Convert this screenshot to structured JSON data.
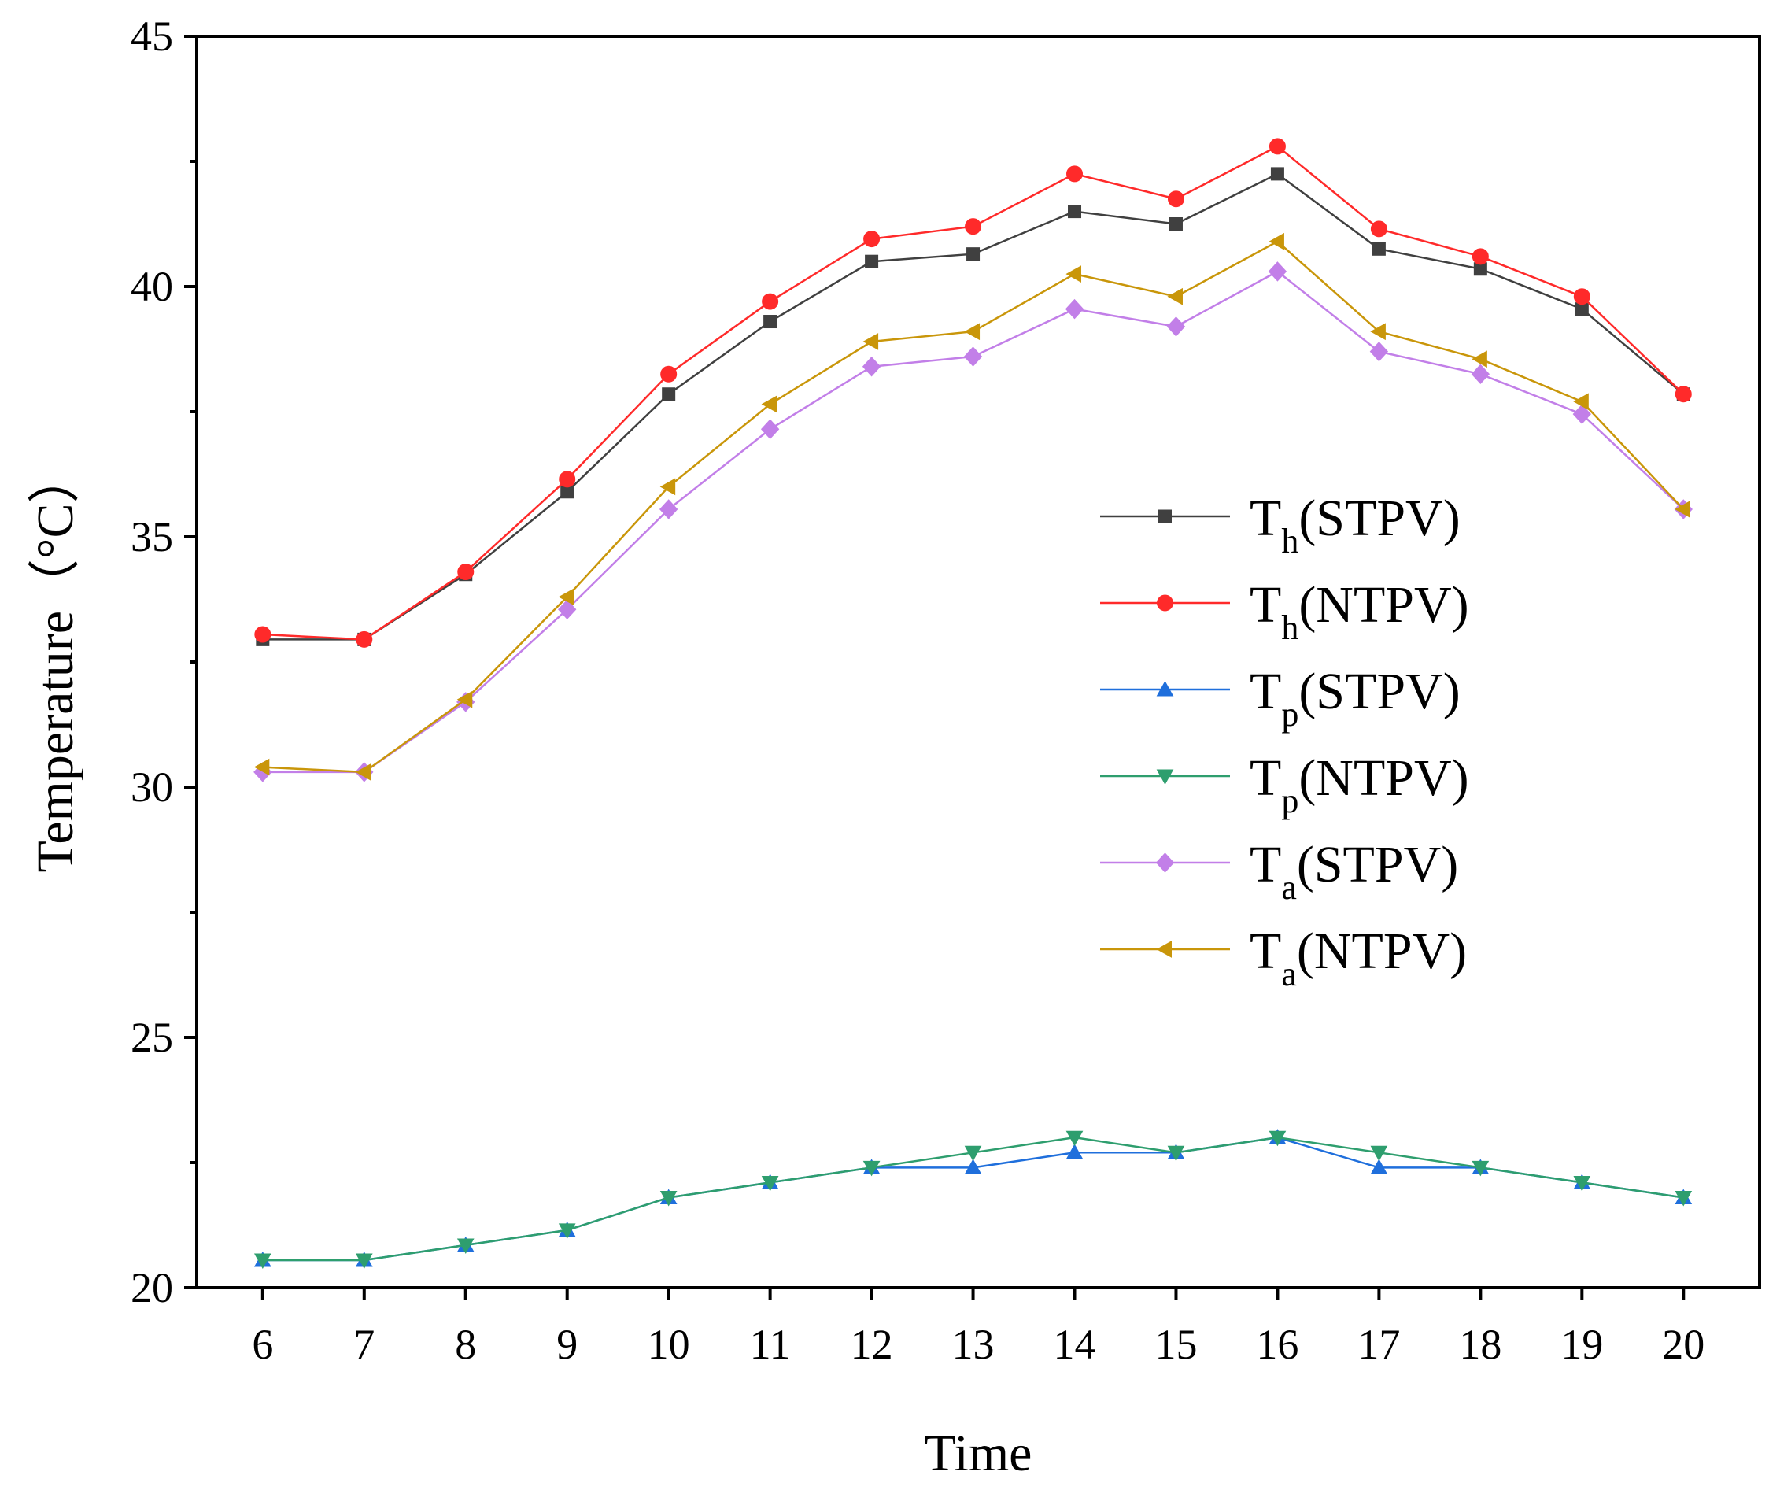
{
  "chart_data": {
    "type": "line",
    "title": "",
    "xlabel": "Time",
    "ylabel": "Temperature（°C）",
    "xlim": [
      5.35,
      20.75
    ],
    "ylim": [
      20,
      45
    ],
    "x": [
      6,
      7,
      8,
      9,
      10,
      11,
      12,
      13,
      14,
      15,
      16,
      17,
      18,
      19,
      20
    ],
    "x_tick_labels": [
      "6",
      "7",
      "8",
      "9",
      "10",
      "11",
      "12",
      "13",
      "14",
      "15",
      "16",
      "17",
      "18",
      "19",
      "20"
    ],
    "y_ticks": [
      20,
      25,
      30,
      35,
      40,
      45
    ],
    "y_tick_labels": [
      "20",
      "25",
      "30",
      "35",
      "40",
      "45"
    ],
    "legend_position": "right-center",
    "series": [
      {
        "name": "Th(STPV)",
        "base": "T",
        "sub": "h",
        "suffix": "(STPV)",
        "color": "#404040",
        "marker": "square",
        "values": [
          32.95,
          32.95,
          34.25,
          35.9,
          37.85,
          39.3,
          40.5,
          40.65,
          41.5,
          41.25,
          42.25,
          40.75,
          40.35,
          39.55,
          37.85
        ]
      },
      {
        "name": "Th(NTPV)",
        "base": "T",
        "sub": "h",
        "suffix": "(NTPV)",
        "color": "#ff2a2a",
        "marker": "circle",
        "values": [
          33.05,
          32.95,
          34.3,
          36.15,
          38.25,
          39.7,
          40.95,
          41.2,
          42.25,
          41.75,
          42.8,
          41.15,
          40.6,
          39.8,
          37.85
        ]
      },
      {
        "name": "Tp(STPV)",
        "base": "T",
        "sub": "p",
        "suffix": "(STPV)",
        "color": "#1f6fdc",
        "marker": "triangle-up",
        "values": [
          20.55,
          20.55,
          20.85,
          21.15,
          21.8,
          22.1,
          22.4,
          22.4,
          22.7,
          22.7,
          23.0,
          22.4,
          22.4,
          22.1,
          21.8
        ]
      },
      {
        "name": "Tp(NTPV)",
        "base": "T",
        "sub": "p",
        "suffix": "(NTPV)",
        "color": "#2e9e6e",
        "marker": "triangle-down",
        "values": [
          20.55,
          20.55,
          20.85,
          21.15,
          21.8,
          22.1,
          22.4,
          22.7,
          23.0,
          22.7,
          23.0,
          22.7,
          22.4,
          22.1,
          21.8
        ]
      },
      {
        "name": "Ta(STPV)",
        "base": "T",
        "sub": "a",
        "suffix": "(STPV)",
        "color": "#c27fe8",
        "marker": "diamond",
        "values": [
          30.3,
          30.3,
          31.7,
          33.55,
          35.55,
          37.15,
          38.4,
          38.6,
          39.55,
          39.2,
          40.3,
          38.7,
          38.25,
          37.45,
          35.55
        ]
      },
      {
        "name": "Ta(NTPV)",
        "base": "T",
        "sub": "a",
        "suffix": "(NTPV)",
        "color": "#c9960a",
        "marker": "triangle-left",
        "values": [
          30.4,
          30.3,
          31.75,
          33.8,
          36.0,
          37.65,
          38.9,
          39.1,
          40.25,
          39.8,
          40.9,
          39.1,
          38.55,
          37.7,
          35.55
        ]
      }
    ]
  }
}
